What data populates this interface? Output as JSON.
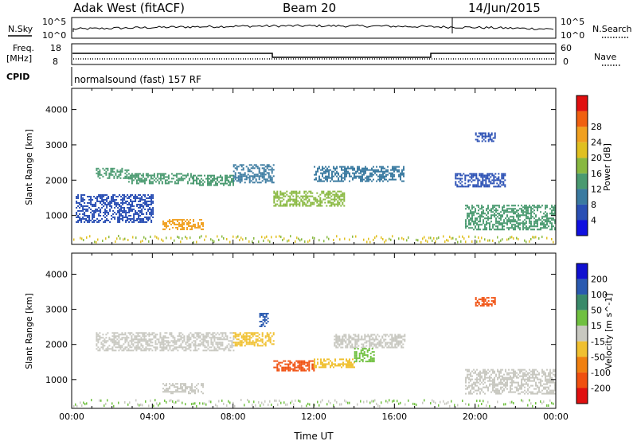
{
  "header": {
    "station": "Adak West (fitACF)",
    "beam": "Beam 20",
    "date": "14/Jun/2015"
  },
  "strip_labels": {
    "nsky": "N.Sky",
    "nsky_tick_top": "10^5",
    "nsky_tick_bottom": "10^0",
    "nsearch": "N.Search",
    "nsearch_tick_top": "10^5",
    "nsearch_tick_bottom": "10^0",
    "freq": "Freq.",
    "freq_unit": "[MHz]",
    "freq_tick_top": "18",
    "freq_tick_bottom": "8",
    "nave": "Nave",
    "nave_tick_top": "60",
    "nave_tick_bottom": "0",
    "cpid": "CPID",
    "cpid_value": "normalsound (fast) 157 RF"
  },
  "chart_data": [
    {
      "type": "heatmap",
      "name": "Power",
      "xlabel": "Time UT",
      "ylabel": "Slant Range [km]",
      "x_ticks": [
        "00:00",
        "04:00",
        "08:00",
        "12:00",
        "16:00",
        "20:00",
        "00:00"
      ],
      "y_ticks": [
        1000,
        2000,
        3000,
        4000
      ],
      "xlim_hours": [
        0,
        24
      ],
      "ylim_km": [
        180,
        4600
      ],
      "colorbar_label": "Power [dB]",
      "colorbar_ticks": [
        4,
        8,
        12,
        16,
        20,
        24,
        28
      ],
      "colorbar_colors": [
        "#1010e0",
        "#2a4fb4",
        "#3a7aa0",
        "#4a9a70",
        "#88b840",
        "#e0c020",
        "#f0a020",
        "#f06010",
        "#e01010"
      ],
      "echo_regions": [
        {
          "t0": 1.2,
          "t1": 2.8,
          "r0": 2050,
          "r1": 2350,
          "level": 12
        },
        {
          "t0": 2.8,
          "t1": 6.0,
          "r0": 1900,
          "r1": 2200,
          "level": 14
        },
        {
          "t0": 6.0,
          "t1": 8.0,
          "r0": 1850,
          "r1": 2150,
          "level": 12
        },
        {
          "t0": 8.0,
          "t1": 10.0,
          "r0": 1950,
          "r1": 2450,
          "level": 10
        },
        {
          "t0": 10.0,
          "t1": 13.5,
          "r0": 1250,
          "r1": 1700,
          "level": 16
        },
        {
          "t0": 12.0,
          "t1": 16.5,
          "r0": 1950,
          "r1": 2400,
          "level": 10
        },
        {
          "t0": 4.5,
          "t1": 6.5,
          "r0": 600,
          "r1": 900,
          "level": 26
        },
        {
          "t0": 0.2,
          "t1": 4.0,
          "r0": 800,
          "r1": 1600,
          "level": 6
        },
        {
          "t0": 19.5,
          "t1": 24.0,
          "r0": 600,
          "r1": 1300,
          "level": 12
        },
        {
          "t0": 19.0,
          "t1": 21.5,
          "r0": 1800,
          "r1": 2200,
          "level": 6
        },
        {
          "t0": 20.0,
          "t1": 21.0,
          "r0": 3100,
          "r1": 3350,
          "level": 6
        }
      ]
    },
    {
      "type": "heatmap",
      "name": "Velocity",
      "xlabel": "Time UT",
      "ylabel": "Slant Range [km]",
      "x_ticks": [
        "00:00",
        "04:00",
        "08:00",
        "12:00",
        "16:00",
        "20:00",
        "00:00"
      ],
      "y_ticks": [
        1000,
        2000,
        3000,
        4000
      ],
      "xlim_hours": [
        0,
        24
      ],
      "ylim_km": [
        180,
        4600
      ],
      "colorbar_label": "Velocity [m s^-1]",
      "colorbar_ticks": [
        200,
        100,
        50,
        15,
        -15,
        -50,
        -100,
        -200
      ],
      "colorbar_colors": [
        "#1010d0",
        "#2a5ab0",
        "#3a8a6a",
        "#70c040",
        "#c8c8c0",
        "#f0c030",
        "#f08010",
        "#f05010",
        "#e01010"
      ],
      "echo_regions": [
        {
          "t0": 1.2,
          "t1": 8.0,
          "r0": 1850,
          "r1": 2350,
          "level": 0
        },
        {
          "t0": 8.0,
          "t1": 10.0,
          "r0": 1950,
          "r1": 2350,
          "level": -40
        },
        {
          "t0": 10.0,
          "t1": 12.0,
          "r0": 1250,
          "r1": 1550,
          "level": -150
        },
        {
          "t0": 12.0,
          "t1": 14.0,
          "r0": 1350,
          "r1": 1600,
          "level": -40
        },
        {
          "t0": 13.0,
          "t1": 16.5,
          "r0": 1900,
          "r1": 2300,
          "level": 0
        },
        {
          "t0": 14.0,
          "t1": 15.0,
          "r0": 1500,
          "r1": 1900,
          "level": 30
        },
        {
          "t0": 4.5,
          "t1": 6.5,
          "r0": 600,
          "r1": 900,
          "level": 0
        },
        {
          "t0": 19.5,
          "t1": 24.0,
          "r0": 600,
          "r1": 1300,
          "level": 0
        },
        {
          "t0": 20.0,
          "t1": 21.0,
          "r0": 3100,
          "r1": 3350,
          "level": -150
        },
        {
          "t0": 9.3,
          "t1": 9.7,
          "r0": 2500,
          "r1": 2900,
          "level": 150
        }
      ]
    }
  ]
}
